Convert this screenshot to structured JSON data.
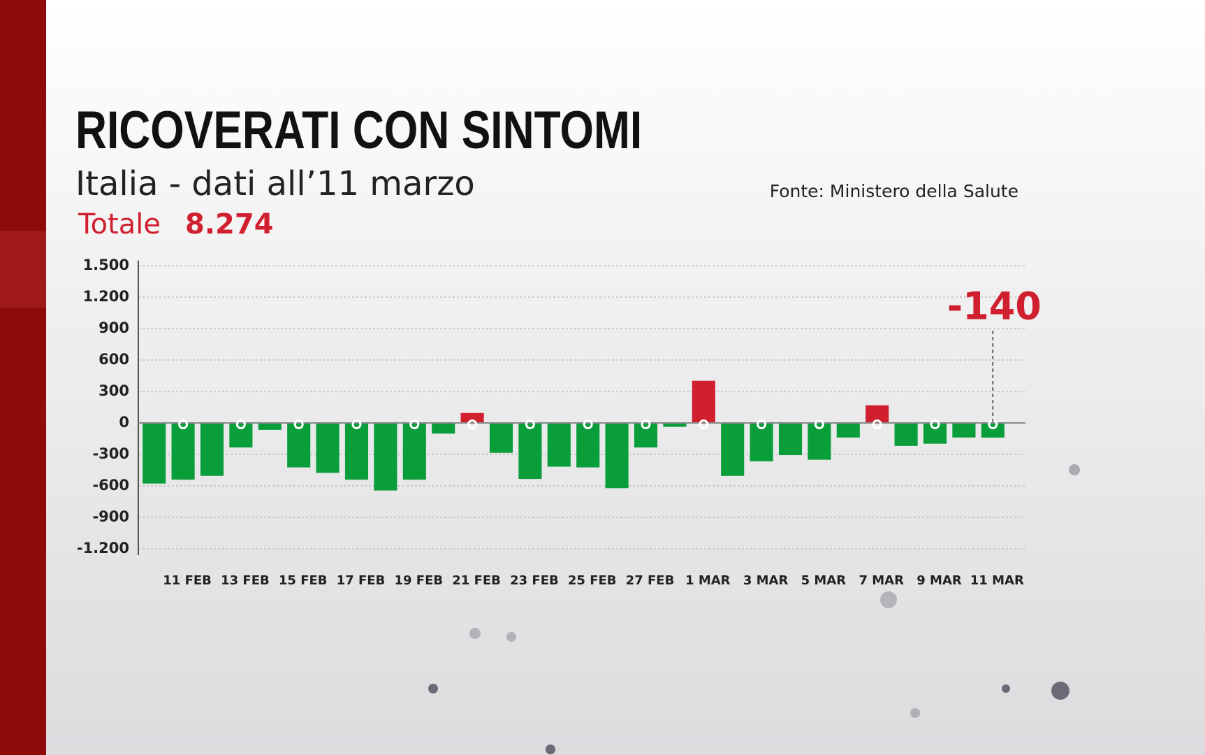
{
  "chart_data": {
    "type": "bar",
    "title": "RICOVERATI CON SINTOMI",
    "subtitle": "Italia - dati all’11 marzo",
    "total_label": "Totale",
    "total_value": "8.274",
    "source": "Fonte: Ministero della Salute",
    "annotation": "-140",
    "categories": [
      null,
      "11 FEB",
      null,
      "13 FEB",
      null,
      "15 FEB",
      null,
      "17 FEB",
      null,
      "19 FEB",
      null,
      "21 FEB",
      null,
      "23 FEB",
      null,
      "25 FEB",
      null,
      "27 FEB",
      null,
      "1 MAR",
      null,
      "3 MAR",
      null,
      "5 MAR",
      null,
      "7 MAR",
      null,
      "9 MAR",
      null,
      "11 MAR"
    ],
    "values": [
      -578,
      -541,
      -505,
      -234,
      -66,
      -424,
      -476,
      -541,
      -644,
      -541,
      -102,
      95,
      -285,
      -534,
      -417,
      -424,
      -622,
      -234,
      -37,
      402,
      -505,
      -366,
      -307,
      -351,
      -139,
      168,
      -219,
      -198,
      -139,
      -140
    ],
    "colors": {
      "positive": "#d0202f",
      "negative": "#0a9e3a"
    },
    "ylim": [
      -1260,
      1550
    ],
    "yticks": [
      {
        "value": 1500,
        "label": "1.500"
      },
      {
        "value": 1200,
        "label": "1.200"
      },
      900,
      600,
      300,
      0,
      -300,
      -600,
      -900,
      {
        "value": -1200,
        "label": "-1.200"
      }
    ],
    "grid": true
  }
}
